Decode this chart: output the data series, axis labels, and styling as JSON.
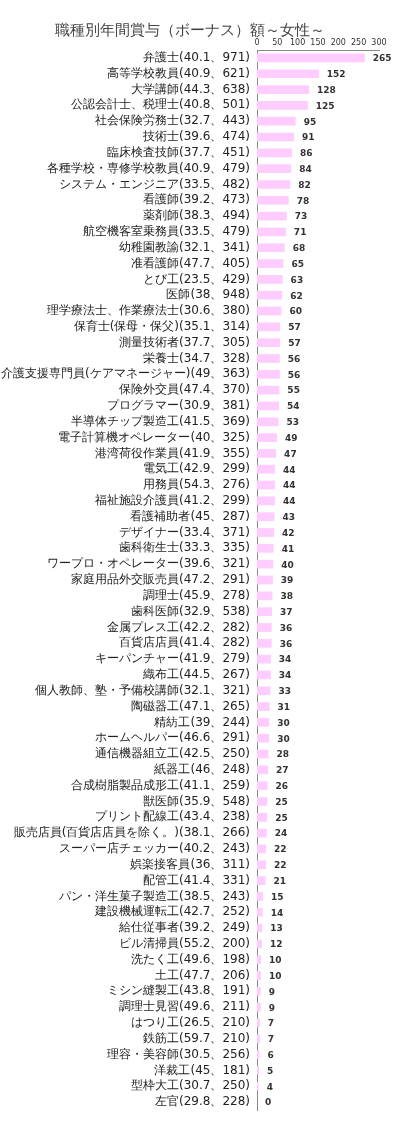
{
  "chart_data": {
    "type": "bar",
    "orientation": "horizontal",
    "title": "職種別年間賞与（ボーナス）額～女性～",
    "categories": [
      "弁護士(40.1、971)",
      "高等学校教員(40.9、621)",
      "大学講師(44.3、638)",
      "公認会計士、税理士(40.8、501)",
      "社会保険労務士(32.7、443)",
      "技術士(39.6、474)",
      "臨床検査技師(37.7、451)",
      "各種学校・専修学校教員(40.9、479)",
      "システム・エンジニア(33.5、482)",
      "看護師(39.2、473)",
      "薬剤師(38.3、494)",
      "航空機客室乗務員(33.5、479)",
      "幼稚園教諭(32.1、341)",
      "准看護師(47.7、405)",
      "とび工(23.5、429)",
      "医師(38、948)",
      "理学療法士、作業療法士(30.6、380)",
      "保育士(保母・保父)(35.1、314)",
      "測量技術者(37.7、305)",
      "栄養士(34.7、328)",
      "介護支援専門員(ケアマネージャー)(49、363)",
      "保険外交員(47.4、370)",
      "プログラマー(30.9、381)",
      "半導体チップ製造工(41.5、369)",
      "電子計算機オペレーター(40、325)",
      "港湾荷役作業員(41.9、355)",
      "電気工(42.9、299)",
      "用務員(54.3、276)",
      "福祉施設介護員(41.2、299)",
      "看護補助者(45、287)",
      "デザイナー(33.4、371)",
      "歯科衛生士(33.3、335)",
      "ワープロ・オペレーター(39.6、321)",
      "家庭用品外交販売員(47.2、291)",
      "調理士(45.9、278)",
      "歯科医師(32.9、538)",
      "金属プレス工(42.2、282)",
      "百貨店店員(41.4、282)",
      "キーパンチャー(41.9、279)",
      "織布工(44.5、267)",
      "個人教師、塾・予備校講師(32.1、321)",
      "陶磁器工(47.1、265)",
      "精紡工(39、244)",
      "ホームヘルパー(46.6、291)",
      "通信機器組立工(42.5、250)",
      "紙器工(46、248)",
      "合成樹脂製品成形工(41.1、259)",
      "獣医師(35.9、548)",
      "プリント配線工(43.4、238)",
      "販売店員(百貨店店員を除く。)(38.1、266)",
      "スーパー店チェッカー(40.2、243)",
      "娯楽接客員(36、311)",
      "配管工(41.4、331)",
      "パン・洋生菓子製造工(38.5、243)",
      "建設機械運転工(42.7、252)",
      "給仕従事者(39.2、249)",
      "ビル清掃員(55.2、200)",
      "洗たく工(49.6、198)",
      "土工(47.7、206)",
      "ミシン縫製工(43.8、191)",
      "調理士見習(49.6、211)",
      "はつり工(26.5、210)",
      "鉄筋工(59.7、210)",
      "理容・美容師(30.5、256)",
      "洋裁工(45、181)",
      "型枠大工(30.7、250)",
      "左官(29.8、228)"
    ],
    "values": [
      265,
      152,
      128,
      125,
      95,
      91,
      86,
      84,
      82,
      78,
      73,
      71,
      68,
      65,
      63,
      62,
      60,
      57,
      57,
      56,
      56,
      55,
      54,
      53,
      49,
      47,
      44,
      44,
      44,
      43,
      42,
      41,
      40,
      39,
      38,
      37,
      36,
      36,
      34,
      34,
      33,
      31,
      30,
      30,
      28,
      27,
      26,
      25,
      25,
      24,
      22,
      22,
      21,
      15,
      14,
      13,
      12,
      10,
      10,
      9,
      9,
      7,
      7,
      6,
      5,
      4,
      0
    ],
    "color": "#ffccff",
    "xlim": [
      0,
      300
    ],
    "xticks": [
      0,
      50,
      100,
      150,
      200,
      250,
      300
    ],
    "grid": false,
    "legend": false,
    "data_labels": true
  }
}
